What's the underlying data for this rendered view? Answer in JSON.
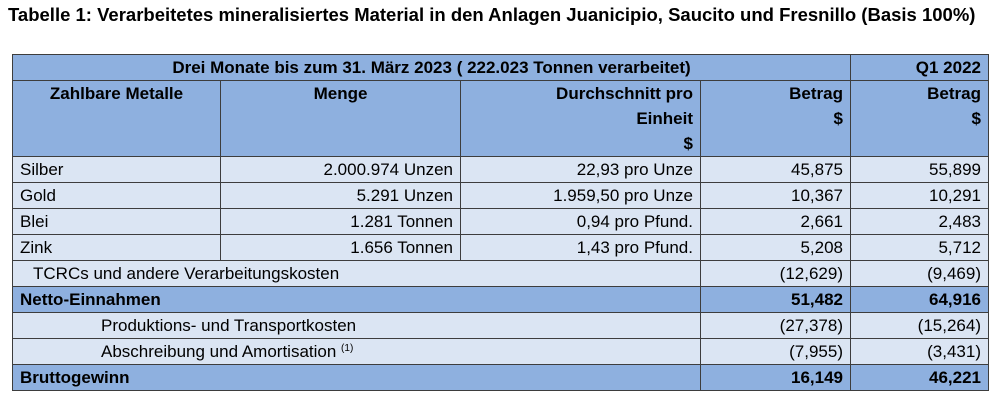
{
  "title": "Tabelle 1: Verarbeitetes mineralisiertes Material in den Anlagen Juanicipio, Saucito und Fresnillo (Basis 100%)",
  "header": {
    "band": "Drei Monate bis zum 31. März 2023 ( 222.023 Tonnen verarbeitet)",
    "q1_2022": "Q1 2022",
    "columns": {
      "metals": "Zahlbare Metalle",
      "quantity": "Menge",
      "avg_line1": "Durchschnitt pro",
      "avg_line2": "Einheit",
      "avg_unit": "$",
      "amount": "Betrag",
      "amount_unit": "$",
      "amount_2022": "Betrag",
      "amount_2022_unit": "$"
    }
  },
  "metals": [
    {
      "name": "Silber",
      "quantity": "2.000.974 Unzen",
      "avg": "22,93 pro Unze",
      "amount": "45,875",
      "amount_2022": "55,899"
    },
    {
      "name": "Gold",
      "quantity": "5.291 Unzen",
      "avg": "1.959,50 pro Unze",
      "amount": "10,367",
      "amount_2022": "10,291"
    },
    {
      "name": "Blei",
      "quantity": "1.281 Tonnen",
      "avg": "0,94 pro Pfund.",
      "amount": "2,661",
      "amount_2022": "2,483"
    },
    {
      "name": "Zink",
      "quantity": "1.656 Tonnen",
      "avg": "1,43 pro Pfund.",
      "amount": "5,208",
      "amount_2022": "5,712"
    }
  ],
  "tcrc": {
    "label": "TCRCs und andere Verarbeitungskosten",
    "amount": "(12,629)",
    "amount_2022": "(9,469)"
  },
  "net_revenue": {
    "label": "Netto-Einnahmen",
    "amount": "51,482",
    "amount_2022": "64,916"
  },
  "production_costs": {
    "label": "Produktions- und Transportkosten",
    "amount": "(27,378)",
    "amount_2022": "(15,264)"
  },
  "depreciation": {
    "label": "Abschreibung und Amortisation",
    "footnote": "(1)",
    "amount": "(7,955)",
    "amount_2022": "(3,431)"
  },
  "gross_profit": {
    "label": "Bruttogewinn",
    "amount": "16,149",
    "amount_2022": "46,221"
  },
  "colors": {
    "header_blue": "#8eb0df",
    "row_light": "#dbe5f3",
    "border": "#3d3d3d"
  }
}
